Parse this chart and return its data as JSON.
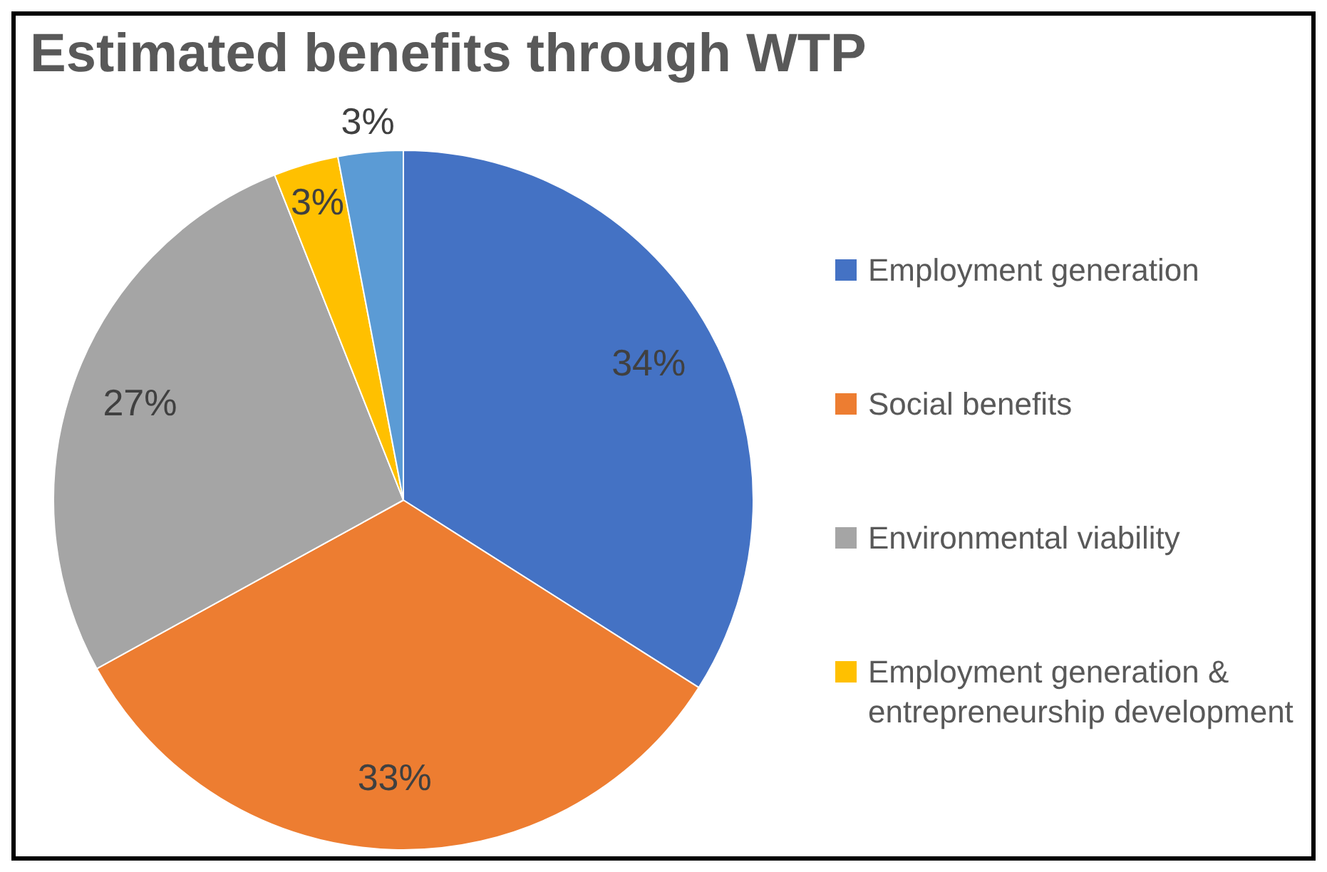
{
  "chart_data": {
    "type": "pie",
    "title": "Estimated benefits through WTP",
    "categories": [
      "Employment generation",
      "Social benefits",
      "Environmental viability",
      "Employment generation & entrepreneurship development",
      null
    ],
    "values": [
      34,
      33,
      27,
      3,
      3
    ],
    "colors": [
      "#4472c4",
      "#ed7d31",
      "#a5a5a5",
      "#ffc000",
      "#5b9bd5"
    ],
    "value_labels": [
      "34%",
      "33%",
      "27%",
      "3%",
      "3%"
    ],
    "legend": "right"
  }
}
